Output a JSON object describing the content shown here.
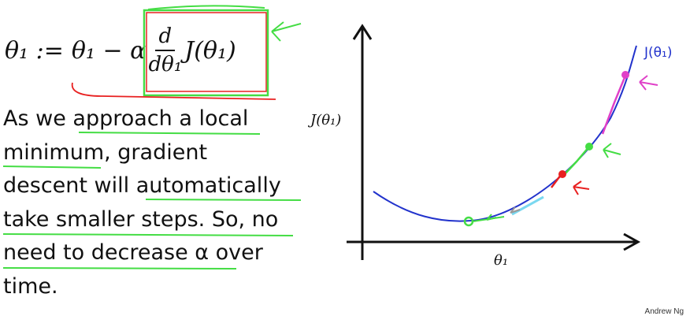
{
  "equation": {
    "lhs": "θ₁ :=",
    "rhs_prefix": "θ₁ − α",
    "frac_num": "d",
    "frac_den": "dθ₁",
    "rhs_suffix": "J(θ₁)"
  },
  "body_lines": [
    "As we approach a local",
    "minimum, gradient",
    "descent will automatically",
    "take smaller steps. So, no",
    "need to decrease α over",
    "time."
  ],
  "chart_data": {
    "type": "line",
    "ylabel": "J(θ₁)",
    "xlabel": "θ₁",
    "curve_annotation": "J(θ₁)",
    "step_points": [
      {
        "color": "#e040c8",
        "label": ""
      },
      {
        "color": "#44dd44",
        "label": ""
      },
      {
        "color": "#e82020",
        "label": ""
      },
      {
        "color": "#44dd44",
        "label": ""
      }
    ]
  },
  "colors": {
    "curve": "#2233cc",
    "highlight_green": "#44dd44",
    "highlight_red": "#e82020",
    "magenta": "#e040c8"
  },
  "credit": "Andrew Ng"
}
